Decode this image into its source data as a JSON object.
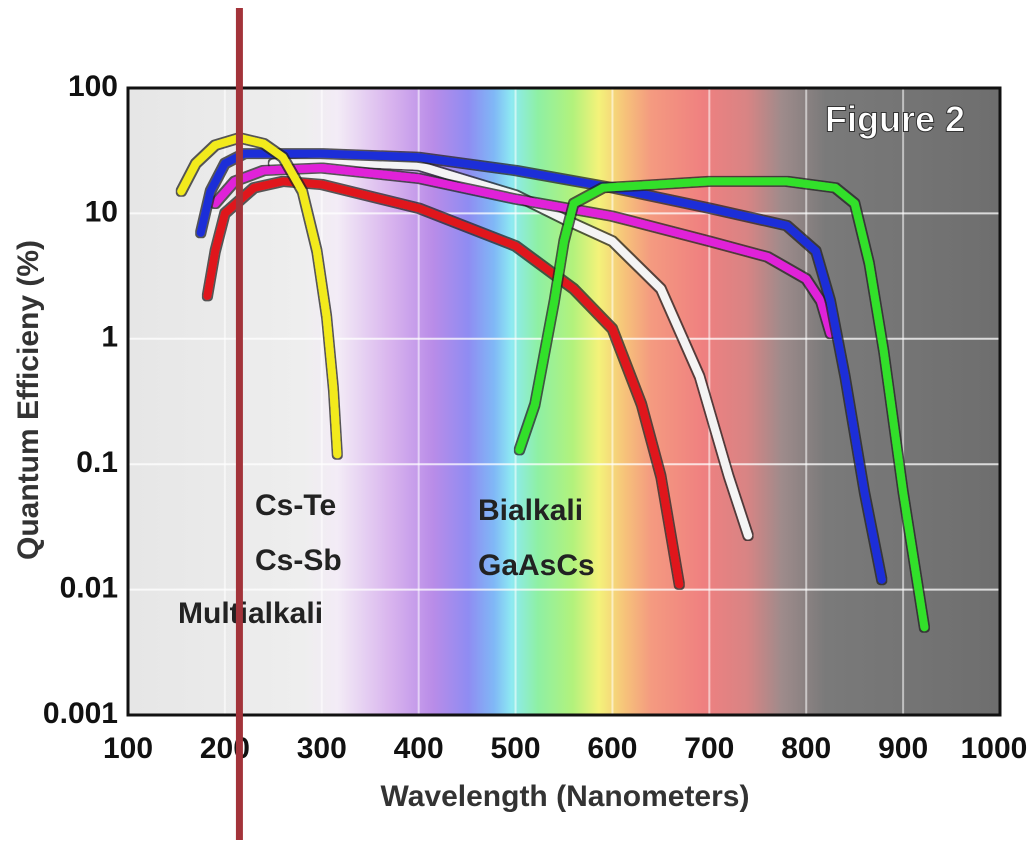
{
  "chart_data": {
    "type": "line",
    "annotation": "Figure 2",
    "x_label": "Wavelength (Nanometers)",
    "y_label": "Quantum Efficieny (%)",
    "legend_group_label": "Multialkali",
    "xlim": [
      100,
      1000
    ],
    "xticks": [
      100,
      200,
      300,
      400,
      500,
      600,
      700,
      800,
      900,
      1000
    ],
    "ylim": [
      0.001,
      100
    ],
    "yticks": [
      0.001,
      0.01,
      0.1,
      1,
      10,
      100
    ],
    "log_y": true,
    "grid": true,
    "marker_line": {
      "x": 215,
      "color": "#a3333a"
    },
    "series": [
      {
        "name": "Bialkali",
        "color": "#f4f4f4",
        "x": [
          250,
          300,
          400,
          500,
          550,
          600,
          650,
          690,
          720,
          740
        ],
        "values": [
          25,
          26,
          24,
          14,
          9,
          6,
          2.5,
          0.5,
          0.08,
          0.027
        ]
      },
      {
        "name": "Cs-Sb",
        "color": "#e0161c",
        "x": [
          182,
          190,
          200,
          230,
          260,
          300,
          400,
          500,
          560,
          600,
          630,
          650,
          669
        ],
        "values": [
          2.2,
          5,
          10,
          16,
          18,
          17,
          11,
          5.5,
          2.5,
          1.2,
          0.3,
          0.08,
          0.011
        ]
      },
      {
        "color": "#e020d8",
        "x": [
          190,
          210,
          240,
          300,
          400,
          500,
          600,
          700,
          760,
          800,
          815,
          825
        ],
        "values": [
          12,
          18,
          22,
          23,
          19,
          13,
          9.5,
          6,
          4.5,
          3,
          2,
          1.1
        ]
      },
      {
        "name": "Multialkali",
        "color": "#1f2fd8",
        "x": [
          175,
          185,
          200,
          220,
          300,
          400,
          500,
          600,
          700,
          780,
          810,
          825,
          840,
          860,
          878
        ],
        "values": [
          7,
          15,
          25,
          30,
          30,
          28,
          22,
          16,
          11,
          8,
          5,
          2,
          0.5,
          0.06,
          0.012
        ]
      },
      {
        "name": "GaAsCs",
        "color": "#33e02a",
        "x": [
          504,
          520,
          540,
          550,
          560,
          590,
          700,
          780,
          830,
          850,
          865,
          880,
          900,
          922
        ],
        "values": [
          0.13,
          0.3,
          2,
          6,
          12,
          16,
          18,
          18,
          16,
          12,
          4,
          0.8,
          0.06,
          0.005
        ]
      },
      {
        "name": "Cs-Te",
        "color": "#f2ea1c",
        "x": [
          155,
          170,
          190,
          215,
          240,
          260,
          280,
          295,
          305,
          312,
          316
        ],
        "values": [
          15,
          25,
          35,
          40,
          36,
          28,
          15,
          5,
          1.5,
          0.4,
          0.12
        ]
      }
    ]
  }
}
